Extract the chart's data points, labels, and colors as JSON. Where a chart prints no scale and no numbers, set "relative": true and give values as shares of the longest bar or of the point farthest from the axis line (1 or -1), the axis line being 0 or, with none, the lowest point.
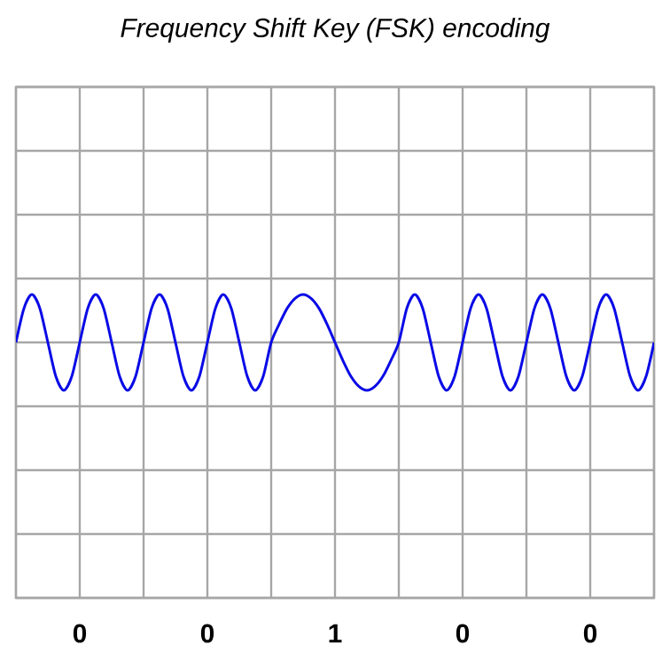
{
  "chart_data": {
    "type": "line",
    "title": "Frequency Shift Key (FSK) encoding",
    "relative": true,
    "grid": true,
    "tick_labels": false,
    "color": "#0a0ae6",
    "categories": [
      null,
      null,
      null,
      null,
      null,
      null,
      null,
      null,
      null,
      null,
      null,
      null,
      null,
      null,
      null,
      null,
      null,
      null,
      null,
      null,
      null,
      null,
      null,
      null,
      null,
      null,
      null,
      null,
      null,
      null,
      null,
      null,
      null,
      null,
      null,
      null,
      null,
      null,
      null,
      null,
      null,
      null,
      null,
      null,
      null,
      null,
      null,
      null,
      null,
      null,
      null,
      null,
      null,
      null,
      null,
      null,
      null,
      null,
      null,
      null,
      null,
      null,
      null,
      null,
      null,
      null,
      null,
      null,
      null,
      null,
      null,
      null,
      null,
      null,
      null,
      null,
      null,
      null,
      null,
      null,
      null
    ],
    "values": [
      0,
      0.71,
      1,
      0.71,
      0,
      -0.71,
      -1,
      -0.71,
      0,
      0.71,
      1,
      0.71,
      0,
      -0.71,
      -1,
      -0.71,
      0,
      0.71,
      1,
      0.71,
      0,
      -0.71,
      -1,
      -0.71,
      0,
      0.71,
      1,
      0.71,
      0,
      -0.71,
      -1,
      -0.71,
      0,
      0.38,
      0.71,
      0.92,
      1,
      0.92,
      0.71,
      0.38,
      0,
      -0.38,
      -0.71,
      -0.92,
      -1,
      -0.92,
      -0.71,
      -0.38,
      0,
      0.71,
      1,
      0.71,
      0,
      -0.71,
      -1,
      -0.71,
      0,
      0.71,
      1,
      0.71,
      0,
      -0.71,
      -1,
      -0.71,
      0,
      0.71,
      1,
      0.71,
      0,
      -0.71,
      -1,
      -0.71,
      0,
      0.71,
      1,
      0.71,
      0,
      -0.71,
      -1,
      -0.71,
      0
    ],
    "annotations": [
      "0",
      "0",
      "1",
      "0",
      "0"
    ]
  }
}
